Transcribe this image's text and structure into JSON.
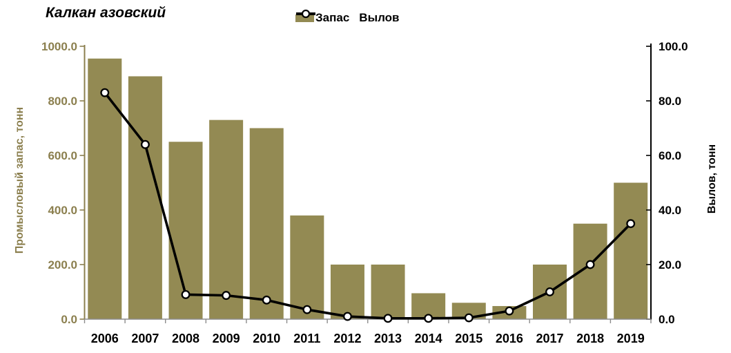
{
  "title": "Калкан азовский",
  "legend": {
    "items": [
      {
        "label": "Запас",
        "marker": "bar-swatch"
      },
      {
        "label": "Вылов",
        "marker": "line-circle-marker"
      }
    ]
  },
  "colors": {
    "bar": "#938a53",
    "olive_axis": "#8b7f4e",
    "line": "#000000",
    "marker_fill": "#ffffff",
    "x_axis": "#8c8c8c",
    "black_text": "#000000"
  },
  "chart_data": {
    "type": "bar",
    "subtype": "combo-bar-line-dual-axis",
    "title": "Калкан азовский",
    "categories": [
      "2006",
      "2007",
      "2008",
      "2009",
      "2010",
      "2011",
      "2012",
      "2013",
      "2014",
      "2015",
      "2016",
      "2017",
      "2018",
      "2019"
    ],
    "series": [
      {
        "name": "Запас",
        "type": "bar",
        "axis": "left",
        "values": [
          955,
          890,
          650,
          730,
          700,
          380,
          200,
          200,
          95,
          60,
          48,
          200,
          350,
          500
        ]
      },
      {
        "name": "Вылов",
        "type": "line",
        "axis": "right",
        "values": [
          83,
          64,
          9,
          8.7,
          7,
          3.5,
          1,
          0.3,
          0.3,
          0.5,
          3,
          10,
          20,
          35
        ]
      }
    ],
    "left_axis": {
      "label": "Промысловый  запас, тонн",
      "min": 0,
      "max": 1000,
      "step": 200,
      "tick_labels": [
        "0.0",
        "200.0",
        "400.0",
        "600.0",
        "800.0",
        "1000.0"
      ]
    },
    "right_axis": {
      "label": "Вылов, тонн",
      "min": 0,
      "max": 100,
      "step": 20,
      "tick_labels": [
        "0.0",
        "20.0",
        "40.0",
        "60.0",
        "80.0",
        "100.0"
      ]
    },
    "grid": false,
    "legend_position": "top-center"
  }
}
